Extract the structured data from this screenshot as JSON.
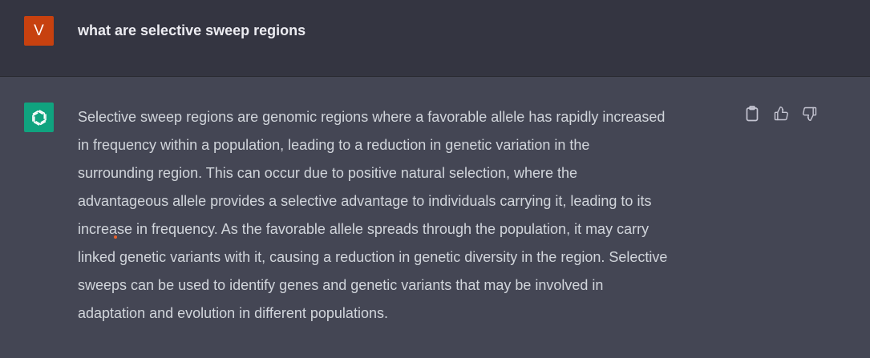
{
  "user_message": {
    "avatar_letter": "V",
    "text": "what are selective sweep regions"
  },
  "assistant_message": {
    "lines": [
      "Selective sweep regions are genomic regions where a favorable allele has rapidly increased",
      "in frequency within a population, leading to a reduction in genetic variation in the",
      "surrounding region. This can occur due to positive natural selection, where the",
      "advantageous allele provides a selective advantage to individuals carrying it, leading to its",
      "increase in frequency. As the favorable allele spreads through the population, it may carry",
      "linked genetic variants with it, causing a reduction in genetic diversity in the region. Selective",
      "sweeps can be used to identify genes and genetic variants that may be involved in",
      "adaptation and evolution in different populations."
    ]
  },
  "actions": {
    "icons": [
      "clipboard-icon",
      "thumbs-up-icon",
      "thumbs-down-icon"
    ]
  },
  "colors": {
    "user_bg": "#343541",
    "assistant_bg": "#444654",
    "user_avatar": "#c7410f",
    "bot_avatar": "#10a37f"
  }
}
